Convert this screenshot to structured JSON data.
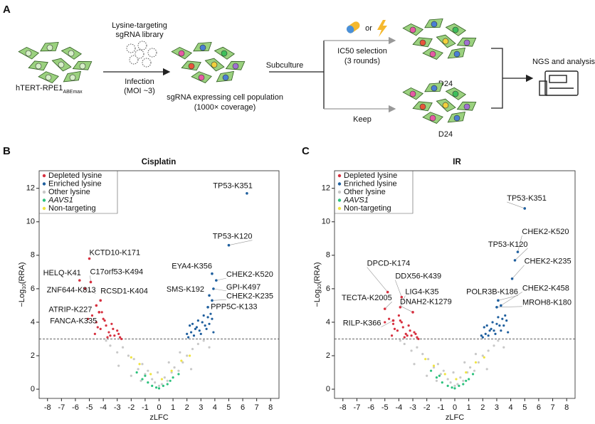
{
  "panel_a": {
    "label": "A",
    "library": [
      "Lysine-targeting",
      "sgRNA library"
    ],
    "infection": [
      "Infection",
      "(MOI ~3)"
    ],
    "cell_line": "hTERT-RPE1",
    "cell_line_sub": "ABEmax",
    "population": [
      "sgRNA expressing cell population",
      "(1000× coverage)"
    ],
    "subculture": "Subculture",
    "or": "or",
    "selection": [
      "IC50 selection",
      "(3 rounds)"
    ],
    "keep": "Keep",
    "day_top": "D24",
    "day_bottom": "D24",
    "ngs": "NGS and analysis"
  },
  "chart_data": [
    {
      "type": "scatter",
      "panel": "B",
      "title": "Cisplatin",
      "xlabel": "zLFC",
      "ylabel": [
        "−Log",
        "10",
        "(RRA)"
      ],
      "xlim": [
        -8.6,
        8.6
      ],
      "ylim": [
        -0.55,
        13.05
      ],
      "xticks": [
        -8,
        -7,
        -6,
        -5,
        -4,
        -3,
        -2,
        -1,
        0,
        1,
        2,
        3,
        4,
        5,
        6,
        7,
        8
      ],
      "yticks": [
        0,
        2,
        4,
        6,
        8,
        10,
        12
      ],
      "threshold": 3,
      "legend": "upper left",
      "series": [
        {
          "name": "Depleted lysine",
          "color": "#d7303f",
          "x": [
            -4.8,
            -4.5,
            -4.2,
            -4,
            -3.8,
            -3.6,
            -3.4,
            -3.2,
            -3,
            -2.8,
            -4.6,
            -4.1,
            -3.7,
            -3.3,
            -2.9,
            -4.4,
            -3.9,
            -3.5,
            -5.1,
            -2.7
          ],
          "values": [
            4.4,
            4.0,
            3.6,
            4.2,
            3.8,
            3.4,
            3.9,
            3.2,
            3.5,
            3.1,
            3.3,
            4.6,
            3.1,
            3.6,
            3.3,
            3.7,
            4.1,
            3.2,
            4.2,
            3.0
          ]
        },
        {
          "name": "Enriched lysine",
          "color": "#1f5f9e",
          "x": [
            2.1,
            2.3,
            2.5,
            2.7,
            2.9,
            3.1,
            3.3,
            3.5,
            3.7,
            2.4,
            2.6,
            2.8,
            3.0,
            3.2,
            3.4,
            3.6,
            2.2,
            3.8,
            2.0,
            3.9
          ],
          "values": [
            3.1,
            3.4,
            3.2,
            3.7,
            3.5,
            4.0,
            3.8,
            4.3,
            4.5,
            3.9,
            3.6,
            4.1,
            3.3,
            4.4,
            3.6,
            3.9,
            3.8,
            4.2,
            3.3,
            3.4
          ]
        },
        {
          "name": "Other lysine",
          "color": "#c8c8c8",
          "x": [
            -3.5,
            -3,
            -2.6,
            -2.2,
            -1.8,
            -1.5,
            -1.2,
            -1,
            -0.8,
            -0.5,
            -0.3,
            0,
            0.2,
            0.4,
            0.6,
            0.9,
            1.1,
            1.4,
            1.7,
            2,
            2.4,
            2.8,
            3.2,
            -2.9,
            -2,
            -1.3,
            0.7,
            1.5,
            2.3,
            -0.1,
            3.6,
            -3.8
          ],
          "values": [
            2.6,
            2.2,
            2.5,
            2.0,
            1.8,
            1.2,
            1.5,
            0.9,
            1.1,
            0.6,
            0.4,
            0.2,
            0.3,
            0.7,
            0.5,
            1.0,
            1.3,
            1.1,
            1.6,
            2.0,
            2.4,
            2.7,
            2.9,
            1.4,
            0.8,
            0.5,
            1.6,
            2.2,
            1.2,
            1.0,
            2.5,
            2.9
          ]
        },
        {
          "name": "AAVS1",
          "color": "#2ec27e",
          "x": [
            -1.6,
            -1.2,
            -0.8,
            -0.5,
            -0.2,
            0,
            0.3,
            0.6,
            1,
            1.4,
            -1,
            0.8
          ],
          "values": [
            1.0,
            0.6,
            0.4,
            0.2,
            0.1,
            0.05,
            0.2,
            0.3,
            0.7,
            0.9,
            0.8,
            0.5
          ]
        },
        {
          "name": "Non-targeting",
          "color": "#f0e442",
          "x": [
            -1.4,
            -0.6,
            0.2,
            0.9,
            1.6,
            2.2,
            -2.0
          ],
          "values": [
            1.5,
            0.9,
            0.6,
            1.1,
            1.7,
            2.0,
            1.9
          ]
        }
      ],
      "annotations": [
        {
          "text": "TP53-K351",
          "x": 6.3,
          "y": 11.7
        },
        {
          "text": "TP53-K120",
          "x": 5.0,
          "y": 8.6
        },
        {
          "text": "KCTD10-K171",
          "x": -5.0,
          "y": 7.8
        },
        {
          "text": "HELQ-K41",
          "x": -5.7,
          "y": 6.5
        },
        {
          "text": "C17orf53-K494",
          "x": -4.9,
          "y": 6.4
        },
        {
          "text": "ZNF644-K813",
          "x": -5.3,
          "y": 6.0
        },
        {
          "text": "RCSD1-K404",
          "x": -4.2,
          "y": 5.3
        },
        {
          "text": "ATRIP-K227",
          "x": -4.5,
          "y": 5.0
        },
        {
          "text": "FANCA-K335",
          "x": -4.3,
          "y": 4.6
        },
        {
          "text": "EYA4-K356",
          "x": 3.8,
          "y": 6.9
        },
        {
          "text": "CHEK2-K520",
          "x": 4.1,
          "y": 6.5
        },
        {
          "text": "GPI-K497",
          "x": 3.9,
          "y": 6.0
        },
        {
          "text": "SMS-K192",
          "x": 3.6,
          "y": 5.6
        },
        {
          "text": "CHEK2-K235",
          "x": 3.8,
          "y": 5.3
        },
        {
          "text": "PPP5C-K133",
          "x": 3.5,
          "y": 4.9
        }
      ]
    },
    {
      "type": "scatter",
      "panel": "C",
      "title": "IR",
      "xlabel": "zLFC",
      "ylabel": [
        "−Log",
        "10",
        "(RRA)"
      ],
      "xlim": [
        -8.6,
        8.6
      ],
      "ylim": [
        -0.55,
        13.05
      ],
      "xticks": [
        -8,
        -7,
        -6,
        -5,
        -4,
        -3,
        -2,
        -1,
        0,
        1,
        2,
        3,
        4,
        5,
        6,
        7,
        8
      ],
      "yticks": [
        0,
        2,
        4,
        6,
        8,
        10,
        12
      ],
      "threshold": 3,
      "legend": "upper left",
      "series": [
        {
          "name": "Depleted lysine",
          "color": "#d7303f",
          "x": [
            -4.7,
            -4.4,
            -4.1,
            -3.9,
            -3.7,
            -3.5,
            -3.3,
            -3.1,
            -2.9,
            -2.7,
            -4.5,
            -4.0,
            -3.6,
            -3.2,
            -2.8,
            -4.3,
            -3.8,
            -3.4,
            -5.0,
            -2.6
          ],
          "values": [
            4.2,
            3.9,
            3.5,
            4.1,
            3.7,
            3.3,
            3.8,
            3.2,
            3.4,
            3.1,
            3.2,
            4.4,
            3.1,
            3.5,
            3.3,
            3.6,
            4.0,
            3.2,
            4.0,
            3.0
          ]
        },
        {
          "name": "Enriched lysine",
          "color": "#1f5f9e",
          "x": [
            2.0,
            2.2,
            2.4,
            2.6,
            2.8,
            3.0,
            3.2,
            3.4,
            3.6,
            2.3,
            2.5,
            2.7,
            2.9,
            3.1,
            3.3,
            3.5,
            2.1,
            3.7,
            1.9,
            3.8
          ],
          "values": [
            3.1,
            3.3,
            3.2,
            3.6,
            3.5,
            3.9,
            3.8,
            4.2,
            4.4,
            3.8,
            3.5,
            4.0,
            3.3,
            4.3,
            3.5,
            3.8,
            3.7,
            4.1,
            3.2,
            3.4
          ]
        },
        {
          "name": "Other lysine",
          "color": "#c8c8c8",
          "x": [
            -3.6,
            -3.1,
            -2.7,
            -2.3,
            -1.9,
            -1.5,
            -1.2,
            -1,
            -0.8,
            -0.5,
            -0.3,
            0,
            0.2,
            0.4,
            0.6,
            0.9,
            1.1,
            1.4,
            1.7,
            2,
            2.4,
            2.8,
            3.1,
            -2.9,
            -2,
            -1.3,
            0.7,
            1.5,
            2.3,
            -0.1,
            3.5,
            -3.9
          ],
          "values": [
            2.7,
            2.3,
            2.5,
            2.1,
            1.8,
            1.3,
            1.5,
            0.9,
            1.1,
            0.6,
            0.4,
            0.2,
            0.3,
            0.7,
            0.5,
            1.0,
            1.3,
            1.1,
            1.6,
            2.0,
            2.3,
            2.6,
            2.9,
            1.5,
            0.8,
            0.5,
            1.6,
            2.1,
            1.2,
            1.0,
            2.5,
            2.9
          ]
        },
        {
          "name": "AAVS1",
          "color": "#2ec27e",
          "x": [
            -1.7,
            -1.3,
            -0.9,
            -0.5,
            -0.2,
            0,
            0.3,
            0.6,
            1,
            1.3,
            -1.1,
            0.8
          ],
          "values": [
            1.1,
            0.7,
            0.4,
            0.2,
            0.1,
            0.05,
            0.2,
            0.3,
            0.6,
            0.9,
            0.8,
            0.5
          ]
        },
        {
          "name": "Non-targeting",
          "color": "#f0e442",
          "x": [
            -1.5,
            -0.7,
            0.1,
            0.8,
            1.5,
            2.1,
            -2.1
          ],
          "values": [
            1.4,
            0.9,
            0.6,
            1.0,
            1.6,
            1.9,
            1.8
          ]
        }
      ],
      "annotations": [
        {
          "text": "TP53-K351",
          "x": 5.0,
          "y": 10.8
        },
        {
          "text": "CHEK2-K520",
          "x": 4.5,
          "y": 8.2
        },
        {
          "text": "TP53-K120",
          "x": 4.3,
          "y": 7.7
        },
        {
          "text": "CHEK2-K235",
          "x": 4.1,
          "y": 6.6
        },
        {
          "text": "CHEK2-K458",
          "x": 3.3,
          "y": 5.0
        },
        {
          "text": "POLR3B-K186",
          "x": 3.1,
          "y": 5.3
        },
        {
          "text": "MROH8-K180",
          "x": 3.0,
          "y": 4.9
        },
        {
          "text": "DPCD-K174",
          "x": -4.8,
          "y": 5.8
        },
        {
          "text": "DDX56-K439",
          "x": -3.8,
          "y": 5.5
        },
        {
          "text": "TECTA-K2005",
          "x": -5.0,
          "y": 4.8
        },
        {
          "text": "LIG4-K35",
          "x": -3.9,
          "y": 4.9
        },
        {
          "text": "DNAH2-K1279",
          "x": -3.0,
          "y": 4.6
        },
        {
          "text": "RILP-K366",
          "x": -4.4,
          "y": 4.1
        }
      ]
    }
  ]
}
